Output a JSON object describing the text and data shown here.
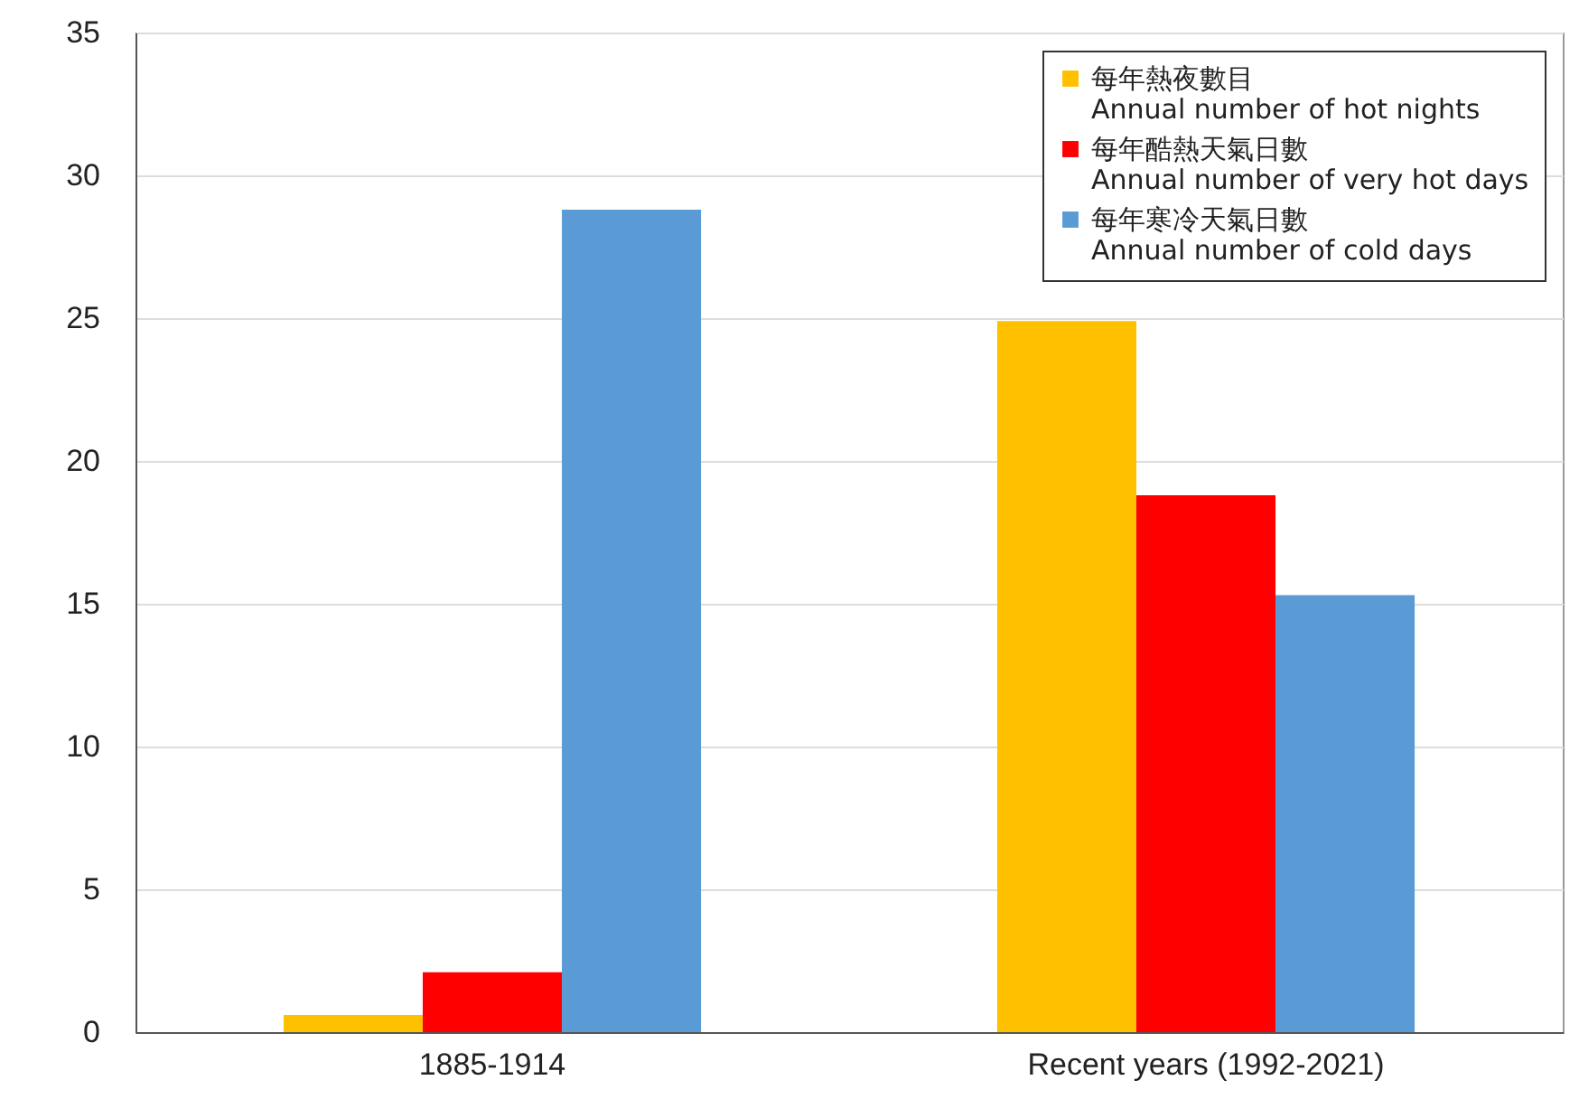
{
  "chart_data": {
    "type": "bar",
    "categories": [
      "1885-1914",
      "Recent years (1992-2021)"
    ],
    "series": [
      {
        "name": "每年熱夜數目\nAnnual number of hot nights",
        "color": "#ffc000",
        "values": [
          0.6,
          24.9
        ]
      },
      {
        "name": "每年酷熱天氣日數\nAnnual number of very hot days",
        "color": "#ff0000",
        "values": [
          2.1,
          18.8
        ]
      },
      {
        "name": "每年寒冷天氣日數\nAnnual number of cold days",
        "color": "#5b9bd5",
        "values": [
          28.8,
          15.3
        ]
      }
    ],
    "ylim": [
      0,
      35
    ],
    "yticks": [
      0,
      5,
      10,
      15,
      20,
      25,
      30,
      35
    ],
    "grid": "y",
    "legend": "top right"
  }
}
